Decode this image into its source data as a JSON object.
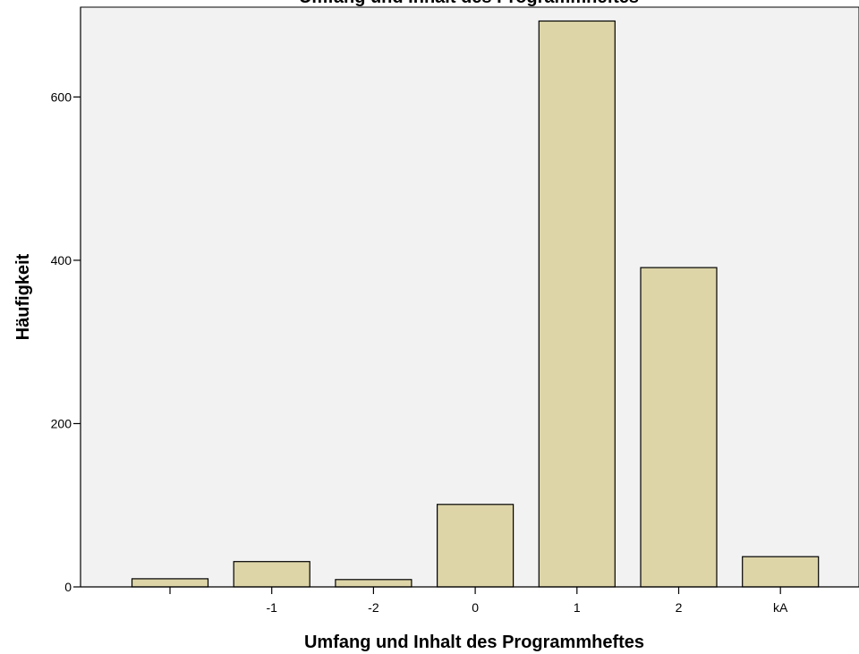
{
  "chart_data": {
    "type": "bar",
    "title": "Umfang und Inhalt des Programmheftes",
    "xlabel": "Umfang und Inhalt des Programmheftes",
    "ylabel": "Häufigkeit",
    "categories": [
      "",
      "-1",
      "-2",
      "0",
      "1",
      "2",
      "kA"
    ],
    "values": [
      10,
      31,
      9,
      101,
      693,
      391,
      37
    ],
    "ylim": [
      0,
      710
    ],
    "yticks": [
      0,
      200,
      400,
      600
    ],
    "grid": false,
    "legend": "none",
    "colors": {
      "bar_fill": "#ddd5a8",
      "bar_stroke": "#000000",
      "plot_background": "#f2f2f2"
    }
  }
}
